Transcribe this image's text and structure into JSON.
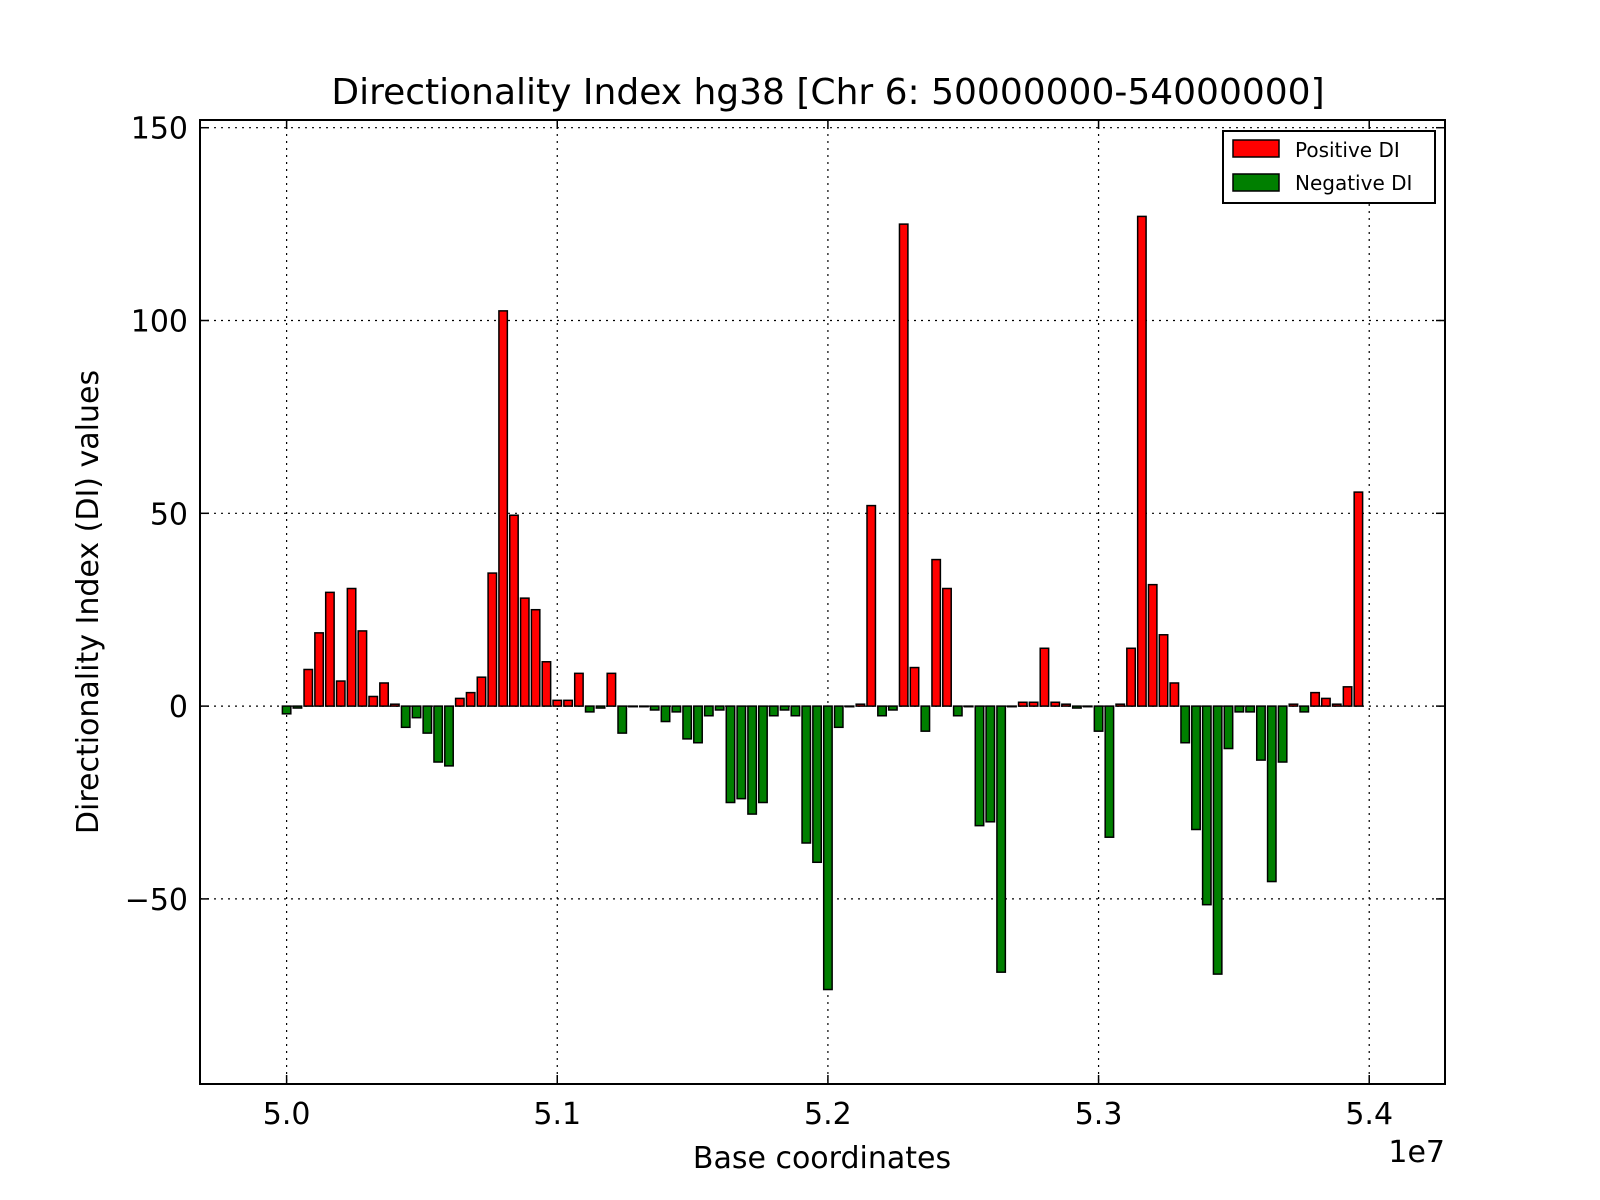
{
  "chart_data": {
    "type": "bar",
    "title": "Directionality Index hg38 [Chr 6: 50000000-54000000]",
    "xlabel": "Base coordinates",
    "ylabel": "Directionality Index (DI) values",
    "x_offset_label": "1e7",
    "xlim": [
      4.968,
      5.428
    ],
    "ylim": [
      -98,
      152
    ],
    "x_ticks": [
      5.0,
      5.1,
      5.2,
      5.3,
      5.4
    ],
    "x_tick_labels": [
      "5.0",
      "5.1",
      "5.2",
      "5.3",
      "5.4"
    ],
    "y_ticks": [
      150,
      100,
      50,
      0,
      -50
    ],
    "y_tick_labels": [
      "150",
      "100",
      "50",
      "0",
      "−50"
    ],
    "grid": true,
    "legend_placement": "top-right",
    "bin_size": 40000,
    "x_start": 50000000,
    "series": [
      {
        "name": "Positive DI",
        "color": "#ff0000"
      },
      {
        "name": "Negative DI",
        "color": "#007f00"
      }
    ],
    "values": [
      -2,
      -0.5,
      9.5,
      19,
      29.5,
      6.5,
      30.5,
      19.5,
      2.5,
      6,
      0.5,
      -5.5,
      -3,
      -7,
      -14.5,
      -15.5,
      2,
      3.5,
      7.5,
      34.5,
      102.5,
      49.5,
      28,
      25,
      11.5,
      1.5,
      1.5,
      8.5,
      -1.5,
      -0.5,
      8.5,
      -7,
      0,
      0,
      -1,
      -4,
      -1.5,
      -8.5,
      -9.5,
      -2.5,
      -1,
      -25,
      -24,
      -28,
      -25,
      -2.5,
      -1,
      -2.5,
      -35.5,
      -40.5,
      -73.5,
      -5.5,
      0,
      0.5,
      52,
      -2.5,
      -1,
      125,
      10,
      -6.5,
      38,
      30.5,
      -2.5,
      0,
      -31,
      -30,
      -69,
      0,
      1,
      1,
      15,
      1,
      0.5,
      -0.5,
      0,
      -6.5,
      -34,
      0.5,
      15,
      127,
      31.5,
      18.5,
      6,
      -9.5,
      -32,
      -51.5,
      -69.5,
      -11,
      -1.5,
      -1.5,
      -14,
      -45.5,
      -14.5,
      0.5,
      -1.5,
      3.5,
      2,
      0.5,
      5,
      55.5
    ]
  }
}
